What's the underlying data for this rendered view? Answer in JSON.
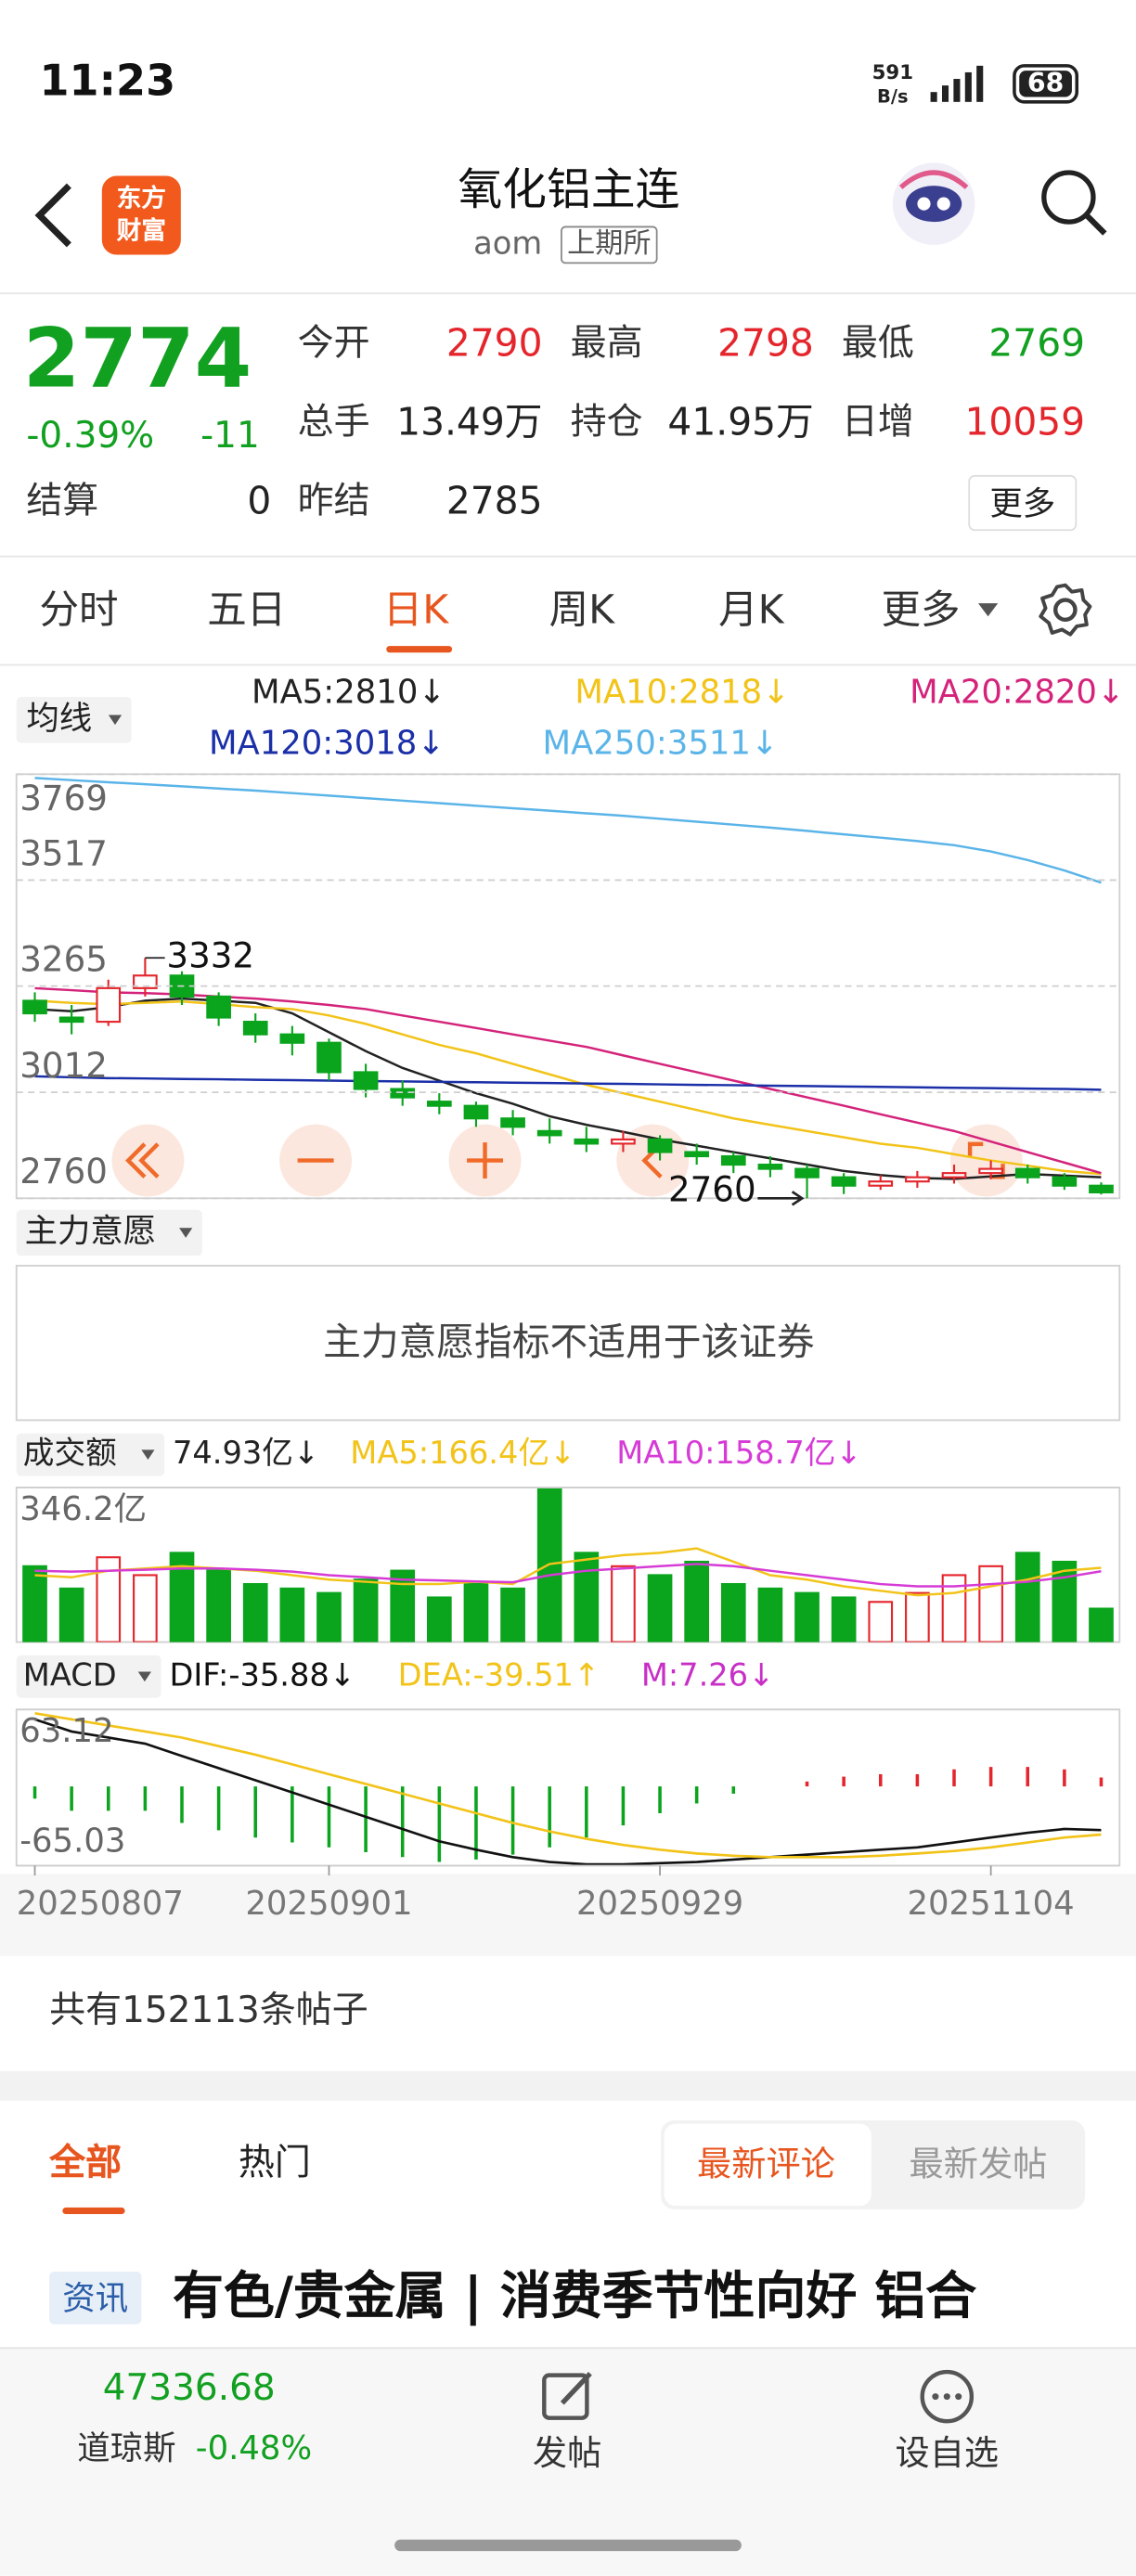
{
  "status_bar": {
    "time": "11:23",
    "net_speed": "591",
    "net_unit": "B/s",
    "battery": "68"
  },
  "header": {
    "logo": [
      "东方",
      "财富"
    ],
    "title": "氧化铝主连",
    "code": "aom",
    "exchange": "上期所"
  },
  "quote": {
    "price": "2774",
    "change_pct": "-0.39%",
    "change": "-11",
    "color": "#12a021",
    "fields": [
      {
        "label": "今开",
        "value": "2790",
        "color": "#e4262c"
      },
      {
        "label": "最高",
        "value": "2798",
        "color": "#e4262c"
      },
      {
        "label": "最低",
        "value": "2769",
        "color": "#12a021"
      },
      {
        "label": "总手",
        "value": "13.49万",
        "color": "#222222"
      },
      {
        "label": "持仓",
        "value": "41.95万",
        "color": "#222222"
      },
      {
        "label": "日增",
        "value": "10059",
        "color": "#e4262c"
      },
      {
        "label": "结算",
        "value": "0",
        "color": "#222222"
      },
      {
        "label": "昨结",
        "value": "2785",
        "color": "#222222"
      }
    ],
    "more": "更多"
  },
  "tabs": [
    "分时",
    "五日",
    "日K",
    "周K",
    "月K",
    "更多"
  ],
  "active_tab": 2,
  "panels": {
    "ma_selector": "均线",
    "main_force": "主力意愿",
    "main_force_note": "主力意愿指标不适用于该证券",
    "volume_selector": "成交额",
    "macd_selector": "MACD"
  },
  "chart_data": [
    {
      "type": "candlestick",
      "up_color": "#e4262c",
      "down_color": "#0aa41d",
      "ylim": [
        2760,
        3769
      ],
      "yticks": [
        3769,
        3517,
        3265,
        3012,
        2760
      ],
      "grid": true,
      "max_label": "3332",
      "min_label": "2760",
      "ohlc": [
        [
          3230,
          3200,
          3250,
          3180
        ],
        [
          3190,
          3180,
          3220,
          3150
        ],
        [
          3180,
          3260,
          3280,
          3170
        ],
        [
          3260,
          3290,
          3332,
          3240
        ],
        [
          3290,
          3240,
          3300,
          3220
        ],
        [
          3240,
          3190,
          3250,
          3170
        ],
        [
          3180,
          3150,
          3200,
          3130
        ],
        [
          3150,
          3130,
          3170,
          3100
        ],
        [
          3130,
          3060,
          3140,
          3040
        ],
        [
          3060,
          3020,
          3080,
          3000
        ],
        [
          3020,
          3000,
          3040,
          2980
        ],
        [
          2990,
          2980,
          3010,
          2960
        ],
        [
          2980,
          2950,
          2990,
          2930
        ],
        [
          2950,
          2930,
          2970,
          2910
        ],
        [
          2920,
          2910,
          2950,
          2890
        ],
        [
          2900,
          2890,
          2930,
          2870
        ],
        [
          2890,
          2900,
          2920,
          2870
        ],
        [
          2900,
          2870,
          2910,
          2850
        ],
        [
          2870,
          2860,
          2890,
          2840
        ],
        [
          2860,
          2840,
          2870,
          2820
        ],
        [
          2840,
          2830,
          2860,
          2810
        ],
        [
          2830,
          2810,
          2840,
          2760
        ],
        [
          2810,
          2790,
          2820,
          2770
        ],
        [
          2790,
          2800,
          2815,
          2780
        ],
        [
          2800,
          2810,
          2825,
          2785
        ],
        [
          2810,
          2820,
          2840,
          2795
        ],
        [
          2820,
          2830,
          2850,
          2805
        ],
        [
          2830,
          2810,
          2840,
          2795
        ],
        [
          2810,
          2790,
          2820,
          2780
        ],
        [
          2790,
          2774,
          2798,
          2769
        ]
      ],
      "series": [
        {
          "name": "MA5:2810↓",
          "color": "#222222",
          "values": [
            3210,
            3205,
            3215,
            3230,
            3235,
            3230,
            3225,
            3200,
            3155,
            3110,
            3070,
            3040,
            3010,
            2985,
            2955,
            2935,
            2918,
            2900,
            2885,
            2870,
            2855,
            2840,
            2825,
            2815,
            2808,
            2806,
            2812,
            2818,
            2814,
            2810
          ]
        },
        {
          "name": "MA10:2818↓",
          "color": "#f2c318",
          "values": [
            3230,
            3225,
            3222,
            3225,
            3228,
            3222,
            3215,
            3210,
            3195,
            3175,
            3150,
            3125,
            3105,
            3080,
            3055,
            3030,
            3010,
            2990,
            2970,
            2950,
            2935,
            2920,
            2905,
            2890,
            2880,
            2865,
            2850,
            2838,
            2825,
            2818
          ]
        },
        {
          "name": "MA20:2820↓",
          "color": "#d4237a",
          "values": [
            3260,
            3255,
            3250,
            3248,
            3245,
            3240,
            3235,
            3228,
            3220,
            3210,
            3195,
            3180,
            3165,
            3150,
            3135,
            3120,
            3100,
            3080,
            3060,
            3040,
            3020,
            3000,
            2980,
            2960,
            2940,
            2920,
            2895,
            2870,
            2845,
            2820
          ]
        },
        {
          "name": "MA120:3018↓",
          "color": "#1b2fa8",
          "values": [
            3050,
            3048,
            3046,
            3045,
            3044,
            3043,
            3042,
            3041,
            3040,
            3039,
            3038,
            3037,
            3036,
            3035,
            3034,
            3033,
            3032,
            3031,
            3030,
            3029,
            3028,
            3027,
            3026,
            3025,
            3024,
            3023,
            3022,
            3021,
            3020,
            3018
          ]
        },
        {
          "name": "MA250:3511↓",
          "color": "#5ab4e8",
          "values": [
            3760,
            3755,
            3750,
            3745,
            3740,
            3735,
            3730,
            3724,
            3718,
            3712,
            3706,
            3700,
            3694,
            3688,
            3682,
            3676,
            3670,
            3663,
            3656,
            3649,
            3642,
            3634,
            3626,
            3618,
            3610,
            3600,
            3585,
            3565,
            3540,
            3511
          ]
        }
      ]
    },
    {
      "type": "volume",
      "current_label": "74.93亿↓",
      "ylim": [
        0,
        346.2
      ],
      "yticks": [
        {
          "value": 346.2,
          "label": "346.2亿"
        }
      ],
      "values": [
        170,
        120,
        190,
        150,
        200,
        160,
        130,
        120,
        110,
        140,
        160,
        100,
        130,
        120,
        346,
        200,
        170,
        150,
        180,
        130,
        120,
        110,
        100,
        90,
        110,
        150,
        170,
        200,
        180,
        74.93
      ],
      "series": [
        {
          "name": "MA5:166.4亿↓",
          "color": "#f2c318",
          "values": [
            150,
            145,
            160,
            165,
            170,
            165,
            160,
            150,
            140,
            135,
            130,
            130,
            135,
            130,
            175,
            185,
            195,
            200,
            210,
            180,
            150,
            140,
            125,
            115,
            105,
            110,
            125,
            140,
            160,
            166.4
          ]
        },
        {
          "name": "MA10:158.7亿↓",
          "color": "#d63bd6",
          "values": [
            160,
            158,
            160,
            162,
            165,
            165,
            162,
            158,
            150,
            145,
            140,
            138,
            136,
            134,
            150,
            160,
            165,
            170,
            175,
            170,
            160,
            150,
            140,
            130,
            125,
            125,
            130,
            135,
            145,
            158.7
          ]
        }
      ]
    },
    {
      "type": "macd",
      "ylim": [
        -65.03,
        63.12
      ],
      "yticks": [
        63.12,
        -65.03
      ],
      "up_color": "#e4262c",
      "down_color": "#0aa41d",
      "categories": [
        "20250807",
        null,
        null,
        null,
        null,
        null,
        null,
        null,
        "20250901",
        null,
        null,
        null,
        null,
        null,
        null,
        null,
        null,
        "20250929",
        null,
        null,
        null,
        null,
        null,
        null,
        null,
        null,
        "20251104",
        null,
        null,
        null
      ],
      "series": [
        {
          "name": "DIF:-35.88↓",
          "color": "#111111",
          "values": [
            55,
            45,
            40,
            35,
            25,
            15,
            5,
            -5,
            -15,
            -25,
            -35,
            -45,
            -52,
            -58,
            -62,
            -64,
            -64,
            -63,
            -62,
            -60,
            -58,
            -56,
            -54,
            -52,
            -50,
            -46,
            -42,
            -38,
            -35,
            -35.88
          ]
        },
        {
          "name": "DEA:-39.51↑",
          "color": "#f2c318",
          "values": [
            60,
            55,
            50,
            45,
            40,
            33,
            26,
            18,
            10,
            2,
            -6,
            -14,
            -22,
            -30,
            -37,
            -43,
            -48,
            -52,
            -55,
            -57,
            -58,
            -58,
            -58,
            -57,
            -55,
            -53,
            -50,
            -46,
            -42,
            -39.51
          ]
        },
        {
          "name": "M:7.26↓",
          "color": "#c72fc7",
          "values": [
            -10,
            -20,
            -20,
            -20,
            -30,
            -36,
            -42,
            -46,
            -50,
            -54,
            -58,
            -62,
            -60,
            -56,
            -50,
            -42,
            -32,
            -22,
            -14,
            -6,
            0,
            4,
            8,
            10,
            10,
            14,
            16,
            16,
            14,
            7.26
          ]
        }
      ]
    }
  ],
  "posts": {
    "count": "共有152113条帖子",
    "tabs": [
      "全部",
      "热门"
    ],
    "sort": [
      "最新评论",
      "最新发帖"
    ],
    "news_tag": "资讯",
    "headline": "有色/贵金属 | 消费季节性向好 铝合"
  },
  "bottom_bar": {
    "index_value": "47336.68",
    "index_name": "道琼斯",
    "index_change": "-0.48%",
    "actions": [
      "发帖",
      "设自选"
    ]
  }
}
